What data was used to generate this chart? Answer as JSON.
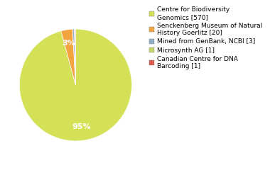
{
  "slices": [
    570,
    20,
    3,
    1,
    1
  ],
  "labels": [
    "Centre for Biodiversity\nGenomics [570]",
    "Senckenberg Museum of Natural\nHistory Goerlitz [20]",
    "Mined from GenBank, NCBI [3]",
    "Microsynth AG [1]",
    "Canadian Centre for DNA\nBarcoding [1]"
  ],
  "colors": [
    "#d4e157",
    "#f4a341",
    "#90afc5",
    "#c5d96b",
    "#e05a4e"
  ],
  "autopct_labels": [
    "95%",
    "3%",
    "",
    "",
    ""
  ],
  "background_color": "#ffffff",
  "startangle": 90,
  "legend_fontsize": 6.5
}
